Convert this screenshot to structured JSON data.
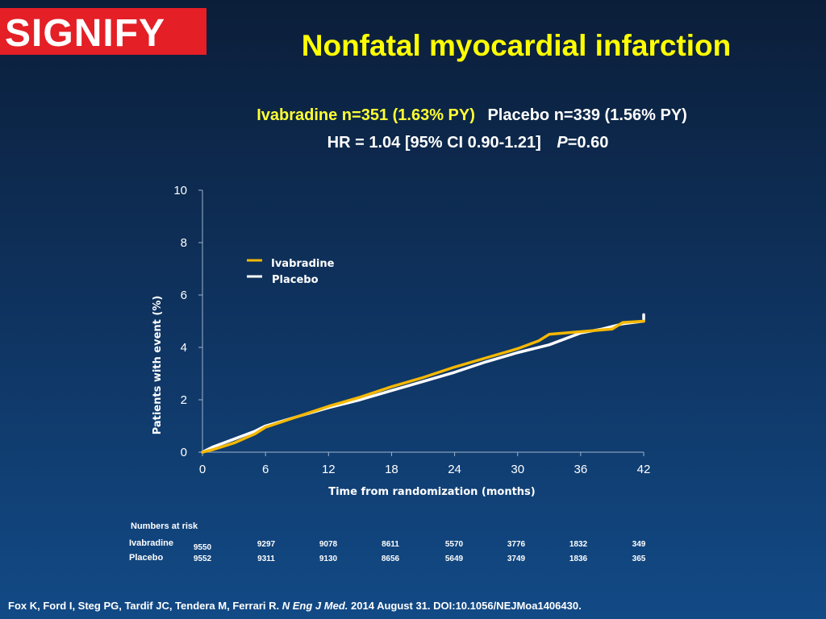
{
  "logo": {
    "text": "SIGNIFY"
  },
  "title": "Nonfatal myocardial infarction",
  "subtitle": {
    "ivabradine": "Ivabradine n=351 (1.63% PY)",
    "placebo": "Placebo n=339 (1.56% PY)",
    "hr": "HR = 1.04 [95% CI 0.90-1.21]",
    "p_symbol": "P",
    "p_value": "=0.60"
  },
  "chart_data": {
    "type": "line",
    "xlabel": "Time from randomization (months)",
    "ylabel": "Patients with event (%)",
    "xlim": [
      0,
      42
    ],
    "ylim": [
      0,
      10
    ],
    "xticks": [
      0,
      6,
      12,
      18,
      24,
      30,
      36,
      42
    ],
    "yticks": [
      0,
      2,
      4,
      6,
      8,
      10
    ],
    "grid": false,
    "legend_position": "top-left",
    "series": [
      {
        "name": "Ivabradine",
        "color": "#f5b800",
        "x": [
          0,
          1,
          3,
          5,
          6,
          9,
          12,
          15,
          18,
          21,
          24,
          27,
          30,
          32,
          33,
          36,
          39,
          40,
          42
        ],
        "y": [
          0,
          0.1,
          0.35,
          0.7,
          0.95,
          1.35,
          1.75,
          2.1,
          2.5,
          2.85,
          3.25,
          3.6,
          3.95,
          4.25,
          4.5,
          4.6,
          4.7,
          4.95,
          5.0
        ]
      },
      {
        "name": "Placebo",
        "color": "#ffffff",
        "x": [
          0,
          1,
          3,
          5,
          6,
          9,
          12,
          15,
          18,
          21,
          24,
          27,
          30,
          33,
          36,
          38,
          40,
          42,
          42
        ],
        "y": [
          0,
          0.2,
          0.5,
          0.8,
          1.0,
          1.35,
          1.7,
          2.0,
          2.35,
          2.7,
          3.05,
          3.45,
          3.8,
          4.1,
          4.55,
          4.7,
          4.9,
          5.0,
          5.25
        ]
      }
    ]
  },
  "risk_table": {
    "title": "Numbers at risk",
    "months": [
      0,
      6,
      12,
      18,
      24,
      30,
      36,
      42
    ],
    "rows": [
      {
        "label": "Ivabradine",
        "values": [
          "9550",
          "9297",
          "9078",
          "8611",
          "5570",
          "3776",
          "1832",
          "349"
        ]
      },
      {
        "label": "Placebo",
        "values": [
          "9552",
          "9311",
          "9130",
          "8656",
          "5649",
          "3749",
          "1836",
          "365"
        ]
      }
    ]
  },
  "footer": {
    "authors": "Fox K, Ford I, Steg PG, Tardif JC, Tendera M, Ferrari R.",
    "journal": "N Eng J Med.",
    "details": "2014 August 31. DOI:10.1056/NEJMoa1406430."
  }
}
